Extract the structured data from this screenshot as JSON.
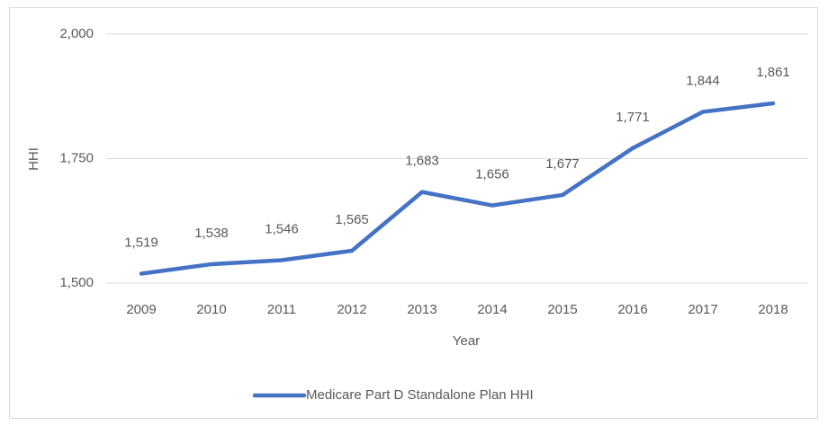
{
  "chart_data": {
    "type": "line",
    "categories": [
      "2009",
      "2010",
      "2011",
      "2012",
      "2013",
      "2014",
      "2015",
      "2016",
      "2017",
      "2018"
    ],
    "series": [
      {
        "name": "Medicare Part D Standalone Plan HHI",
        "color": "#4472c4",
        "values": [
          1519,
          1538,
          1546,
          1565,
          1683,
          1656,
          1677,
          1771,
          1844,
          1861
        ],
        "value_labels": [
          "1,519",
          "1,538",
          "1,546",
          "1,565",
          "1,683",
          "1,656",
          "1,677",
          "1,771",
          "1,844",
          "1,861"
        ]
      }
    ],
    "xlabel": "Year",
    "ylabel": "HHI",
    "ylim": [
      1500,
      2000
    ],
    "yticks": [
      {
        "value": 1500,
        "label": "1,500"
      },
      {
        "value": 1750,
        "label": "1,750"
      },
      {
        "value": 2000,
        "label": "2,000"
      }
    ],
    "grid": true,
    "legend": "bottom"
  }
}
